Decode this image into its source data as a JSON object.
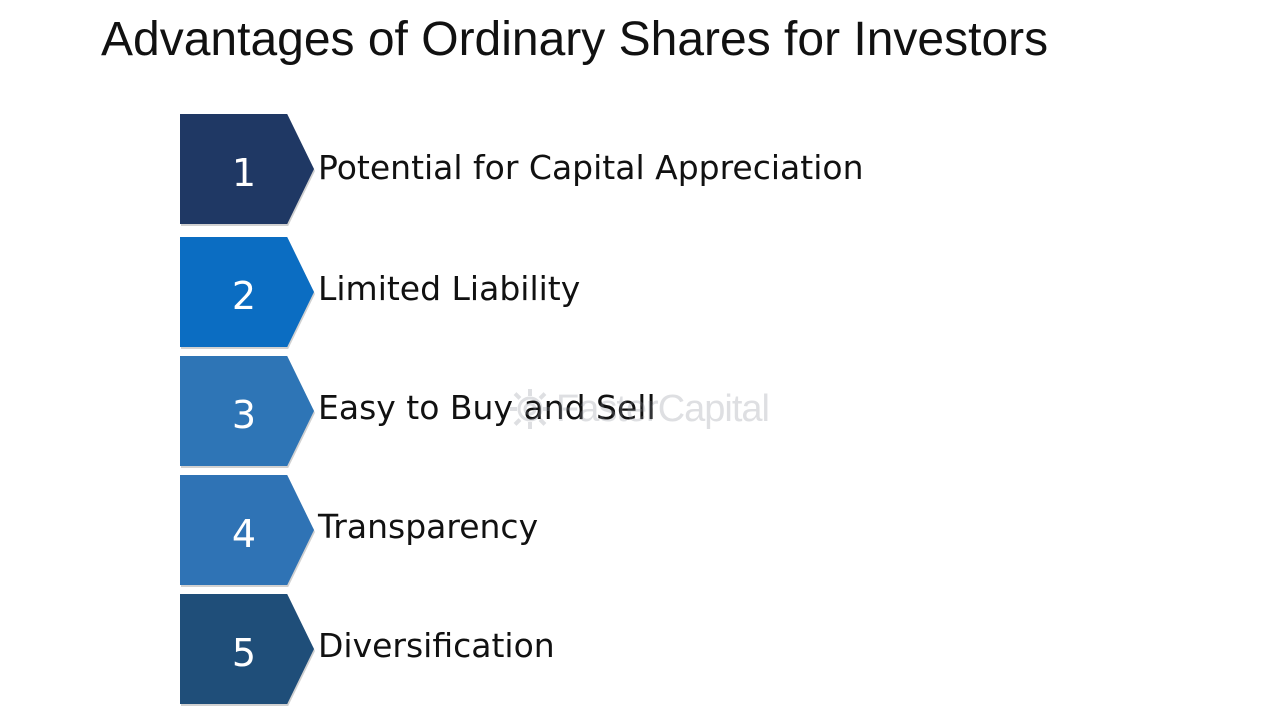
{
  "slide": {
    "title": "Advantages of Ordinary Shares for Investors",
    "items": [
      {
        "number": "1",
        "label": "Potential for Capital Appreciation",
        "color": "#1f3864"
      },
      {
        "number": "2",
        "label": "Limited Liability",
        "color": "#0b6dc2"
      },
      {
        "number": "3",
        "label": "Easy to Buy and Sell",
        "color": "#2e75b6"
      },
      {
        "number": "4",
        "label": "Transparency",
        "color": "#2f73b5"
      },
      {
        "number": "5",
        "label": "Diversification",
        "color": "#1f4e79"
      }
    ],
    "watermark": {
      "text": "FasterCapital",
      "icon": "gear-icon"
    }
  }
}
